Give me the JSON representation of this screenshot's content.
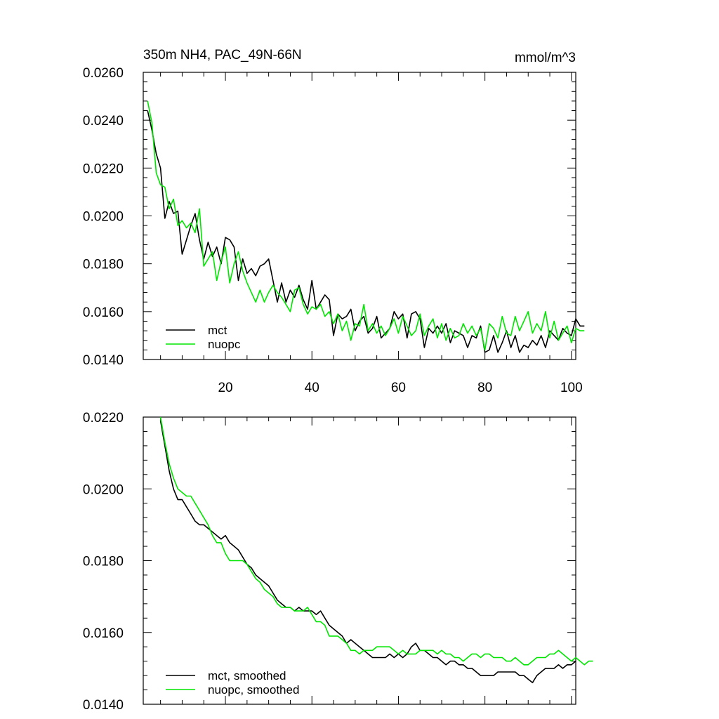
{
  "colors": {
    "mct": "#000000",
    "nuopc": "#00e600",
    "axis": "#000000"
  },
  "chart_data": [
    {
      "type": "line",
      "title_left": "350m NH4, PAC_49N-66N",
      "title_right": "mmol/m^3",
      "xlim": [
        1,
        101
      ],
      "ylim": [
        0.014,
        0.026
      ],
      "x_ticks": [
        20,
        40,
        60,
        80,
        100
      ],
      "x_tick_labels": [
        "20",
        "40",
        "60",
        "80",
        "100"
      ],
      "y_ticks": [
        0.014,
        0.016,
        0.018,
        0.02,
        0.022,
        0.024,
        0.026
      ],
      "y_tick_labels": [
        "0.0140",
        "0.0160",
        "0.0180",
        "0.0200",
        "0.0220",
        "0.0240",
        "0.0260"
      ],
      "legend": "bottom-left",
      "series": [
        {
          "name": "mct",
          "color_key": "mct",
          "x_start": 2,
          "values": [
            0.0244,
            0.0236,
            0.0226,
            0.022,
            0.0199,
            0.0206,
            0.0201,
            0.0202,
            0.0184,
            0.019,
            0.0196,
            0.0201,
            0.019,
            0.0182,
            0.0189,
            0.0183,
            0.0187,
            0.018,
            0.0191,
            0.019,
            0.0187,
            0.0173,
            0.0182,
            0.0176,
            0.0178,
            0.0175,
            0.0179,
            0.018,
            0.0182,
            0.0173,
            0.0164,
            0.0172,
            0.0164,
            0.0169,
            0.0166,
            0.0171,
            0.0165,
            0.0161,
            0.0173,
            0.0161,
            0.0164,
            0.0167,
            0.0165,
            0.015,
            0.0159,
            0.0157,
            0.0158,
            0.0161,
            0.0152,
            0.0156,
            0.0158,
            0.0151,
            0.0153,
            0.0158,
            0.0149,
            0.0151,
            0.0153,
            0.016,
            0.0157,
            0.0159,
            0.0149,
            0.0159,
            0.016,
            0.0157,
            0.0145,
            0.0153,
            0.0151,
            0.0154,
            0.0151,
            0.0155,
            0.0147,
            0.0152,
            0.0151,
            0.015,
            0.0145,
            0.015,
            0.0149,
            0.0154,
            0.0143,
            0.0144,
            0.015,
            0.0143,
            0.0147,
            0.0152,
            0.0145,
            0.015,
            0.0143,
            0.0146,
            0.0145,
            0.0148,
            0.0146,
            0.015,
            0.0145,
            0.0152,
            0.015,
            0.0148,
            0.0153,
            0.0151,
            0.015,
            0.0157,
            0.0154,
            0.0154
          ]
        },
        {
          "name": "nuopc",
          "color_key": "nuopc",
          "x_start": 2,
          "values": [
            0.0248,
            0.0239,
            0.0218,
            0.0213,
            0.0212,
            0.0203,
            0.0207,
            0.0196,
            0.0198,
            0.0195,
            0.0197,
            0.0193,
            0.0203,
            0.0179,
            0.0182,
            0.0185,
            0.0173,
            0.0181,
            0.0187,
            0.0172,
            0.018,
            0.0185,
            0.0177,
            0.0172,
            0.0168,
            0.0164,
            0.0169,
            0.0164,
            0.0168,
            0.0171,
            0.0168,
            0.0166,
            0.0163,
            0.016,
            0.0169,
            0.017,
            0.0163,
            0.0159,
            0.0162,
            0.0161,
            0.0163,
            0.0158,
            0.016,
            0.0155,
            0.0159,
            0.0152,
            0.0156,
            0.0148,
            0.0155,
            0.0154,
            0.0163,
            0.0152,
            0.0155,
            0.0151,
            0.0154,
            0.015,
            0.0153,
            0.0157,
            0.0151,
            0.0158,
            0.0154,
            0.015,
            0.0152,
            0.0159,
            0.015,
            0.0154,
            0.0157,
            0.0149,
            0.0155,
            0.0148,
            0.0153,
            0.0149,
            0.015,
            0.0155,
            0.0151,
            0.0154,
            0.015,
            0.0153,
            0.0144,
            0.0155,
            0.0153,
            0.0149,
            0.0158,
            0.0151,
            0.015,
            0.0158,
            0.0152,
            0.0156,
            0.016,
            0.0151,
            0.0155,
            0.0152,
            0.016,
            0.0149,
            0.0156,
            0.0148,
            0.0151,
            0.0154,
            0.0147,
            0.0153,
            0.0152,
            0.0152
          ]
        }
      ]
    },
    {
      "type": "line",
      "xlim": [
        1,
        101
      ],
      "ylim": [
        0.014,
        0.022
      ],
      "x_ticks": [
        20,
        40,
        60,
        80,
        100
      ],
      "x_tick_labels": [],
      "y_ticks": [
        0.014,
        0.016,
        0.018,
        0.02,
        0.022
      ],
      "y_tick_labels": [
        "0.0140",
        "0.0160",
        "0.0180",
        "0.0200",
        "0.0220"
      ],
      "legend": "bottom-left",
      "series": [
        {
          "name": "mct, smoothed",
          "color_key": "mct",
          "x_start": 5,
          "values": [
            0.0219,
            0.0212,
            0.0205,
            0.02,
            0.0197,
            0.0197,
            0.0195,
            0.0193,
            0.0191,
            0.019,
            0.019,
            0.0189,
            0.0188,
            0.0187,
            0.0186,
            0.0187,
            0.0185,
            0.0184,
            0.0183,
            0.0181,
            0.0179,
            0.0178,
            0.0176,
            0.0175,
            0.0174,
            0.0173,
            0.0171,
            0.0169,
            0.0168,
            0.0167,
            0.0167,
            0.0166,
            0.0167,
            0.0166,
            0.0166,
            0.0166,
            0.0165,
            0.0166,
            0.0164,
            0.0162,
            0.0161,
            0.016,
            0.0159,
            0.0157,
            0.0158,
            0.0157,
            0.0156,
            0.0155,
            0.0154,
            0.0153,
            0.0153,
            0.0153,
            0.0153,
            0.0154,
            0.0153,
            0.0154,
            0.0153,
            0.0154,
            0.0156,
            0.0157,
            0.0155,
            0.0155,
            0.0154,
            0.0153,
            0.0153,
            0.0152,
            0.0151,
            0.0152,
            0.0152,
            0.0151,
            0.0151,
            0.015,
            0.015,
            0.0149,
            0.0148,
            0.0148,
            0.0148,
            0.0148,
            0.0149,
            0.0149,
            0.0149,
            0.0149,
            0.0149,
            0.0148,
            0.0148,
            0.0147,
            0.0146,
            0.0148,
            0.0149,
            0.015,
            0.015,
            0.015,
            0.0151,
            0.015,
            0.0151,
            0.0151,
            0.0152
          ]
        },
        {
          "name": "nuopc, smoothed",
          "color_key": "nuopc",
          "x_start": 5,
          "values": [
            0.022,
            0.0213,
            0.0207,
            0.0203,
            0.02,
            0.0199,
            0.0198,
            0.0198,
            0.0196,
            0.0194,
            0.0192,
            0.019,
            0.0187,
            0.0185,
            0.0185,
            0.0182,
            0.018,
            0.018,
            0.018,
            0.018,
            0.0179,
            0.0177,
            0.0175,
            0.0174,
            0.0172,
            0.0171,
            0.017,
            0.0168,
            0.0167,
            0.0167,
            0.0167,
            0.0166,
            0.0166,
            0.0166,
            0.0167,
            0.0165,
            0.0163,
            0.0163,
            0.0162,
            0.0159,
            0.0159,
            0.0159,
            0.0158,
            0.0157,
            0.0155,
            0.0155,
            0.0154,
            0.0155,
            0.0155,
            0.0155,
            0.0156,
            0.0156,
            0.0156,
            0.0156,
            0.0155,
            0.0154,
            0.0155,
            0.0154,
            0.0154,
            0.0154,
            0.0155,
            0.0155,
            0.0155,
            0.0155,
            0.0154,
            0.0155,
            0.0154,
            0.0154,
            0.0153,
            0.0153,
            0.0152,
            0.0153,
            0.0154,
            0.0154,
            0.0153,
            0.0154,
            0.0154,
            0.0153,
            0.0153,
            0.0153,
            0.0152,
            0.0152,
            0.0153,
            0.0152,
            0.0151,
            0.0151,
            0.0152,
            0.0153,
            0.0153,
            0.0153,
            0.0154,
            0.0154,
            0.0155,
            0.0154,
            0.0153,
            0.0152,
            0.0153,
            0.0152,
            0.0151,
            0.0152,
            0.0152
          ]
        }
      ]
    }
  ]
}
